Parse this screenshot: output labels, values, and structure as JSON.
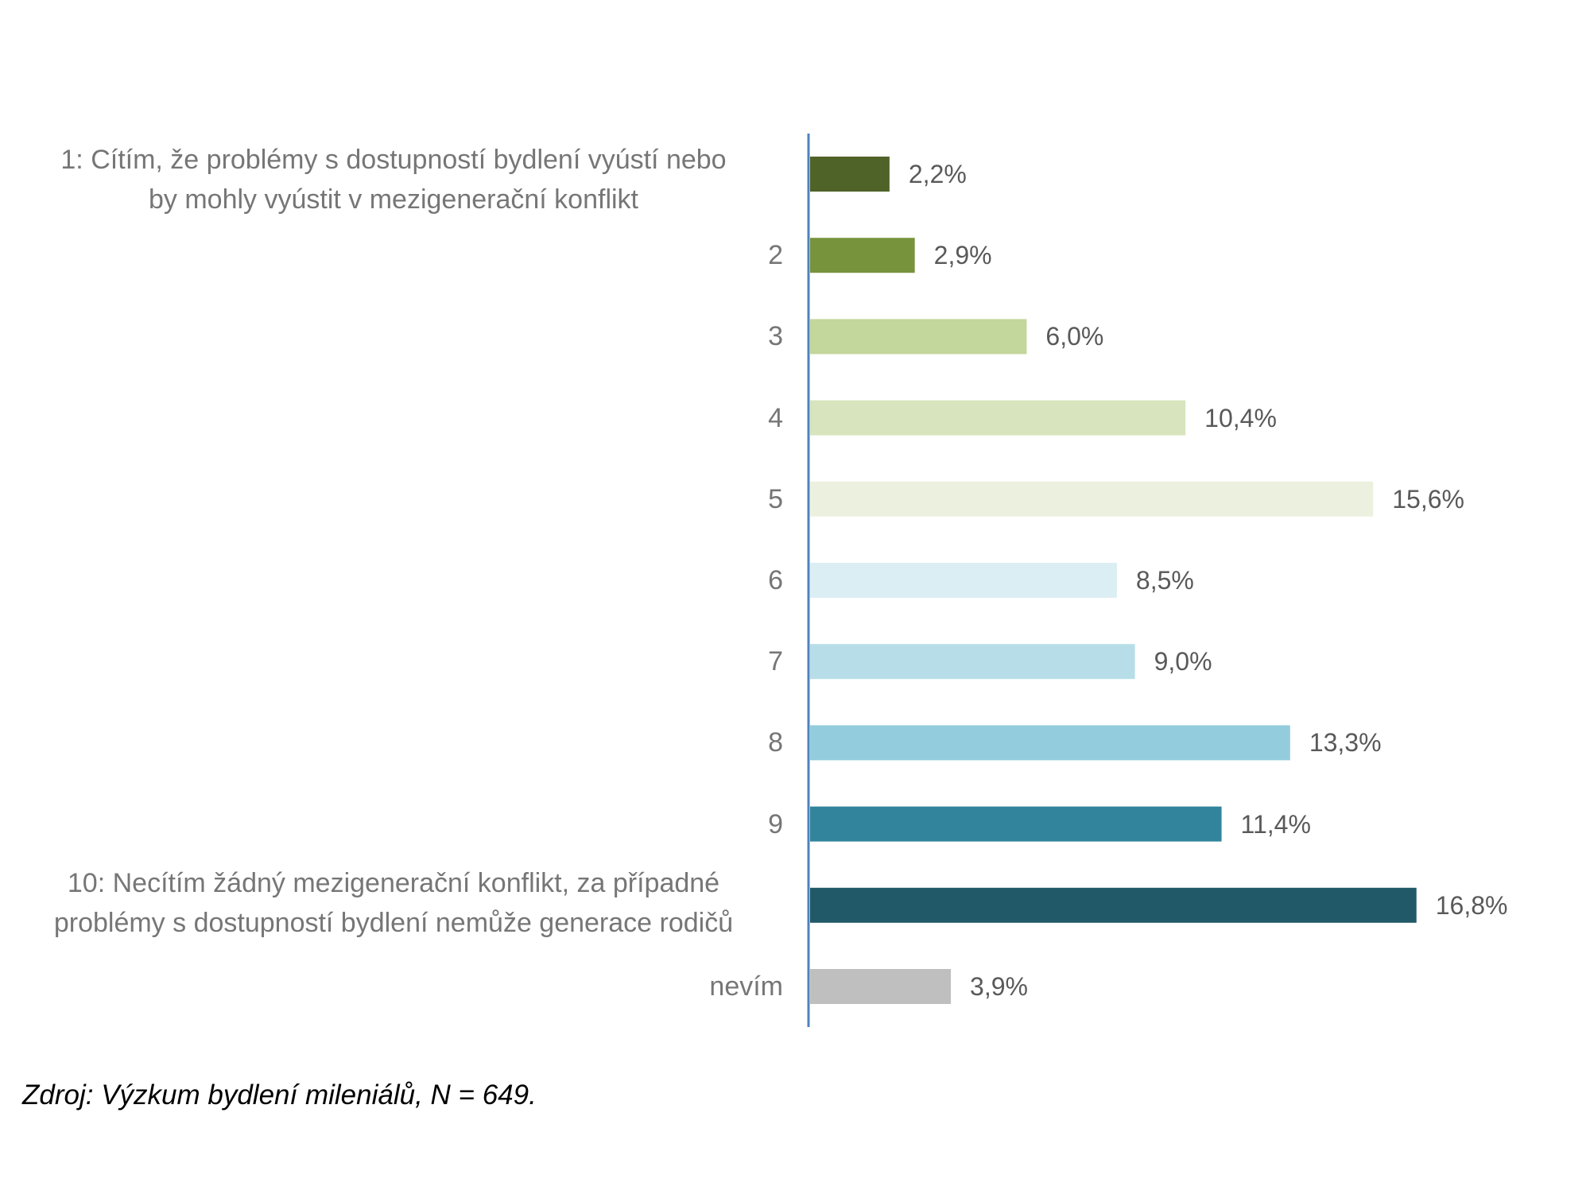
{
  "chart_data": {
    "type": "bar",
    "orientation": "horizontal",
    "categories": [
      "1: Cítím, že problémy s dostupností bydlení vyústí nebo by mohly vyústit v mezigenerační konflikt",
      "2",
      "3",
      "4",
      "5",
      "6",
      "7",
      "8",
      "9",
      "10: Necítím žádný mezigenerační konflikt, za případné problémy s dostupností bydlení nemůže generace rodičů",
      "nevím"
    ],
    "category_lines": [
      [
        "1: Cítím, že problémy s dostupností bydlení vyústí nebo",
        "by mohly vyústit v mezigenerační konflikt"
      ],
      [
        "2"
      ],
      [
        "3"
      ],
      [
        "4"
      ],
      [
        "5"
      ],
      [
        "6"
      ],
      [
        "7"
      ],
      [
        "8"
      ],
      [
        "9"
      ],
      [
        "10: Necítím žádný mezigenerační konflikt, za případné",
        "problémy s dostupností bydlení nemůže generace rodičů"
      ],
      [
        "nevím"
      ]
    ],
    "values": [
      2.2,
      2.9,
      6.0,
      10.4,
      15.6,
      8.5,
      9.0,
      13.3,
      11.4,
      16.8,
      3.9
    ],
    "value_labels": [
      "2,2%",
      "2,9%",
      "6,0%",
      "10,4%",
      "15,6%",
      "8,5%",
      "9,0%",
      "13,3%",
      "11,4%",
      "16,8%",
      "3,9%"
    ],
    "colors": [
      "#4f6228",
      "#77933c",
      "#c3d69b",
      "#d7e4bd",
      "#ebf1de",
      "#dbeef4",
      "#b7dee8",
      "#93cddd",
      "#31849b",
      "#215968",
      "#bfbfbf"
    ],
    "axis_color": "#4f81bd",
    "xlim": [
      0,
      18
    ],
    "grid": false,
    "legend": "none"
  },
  "source_note": "Zdroj: Výzkum bydlení mileniálů, N = 649."
}
